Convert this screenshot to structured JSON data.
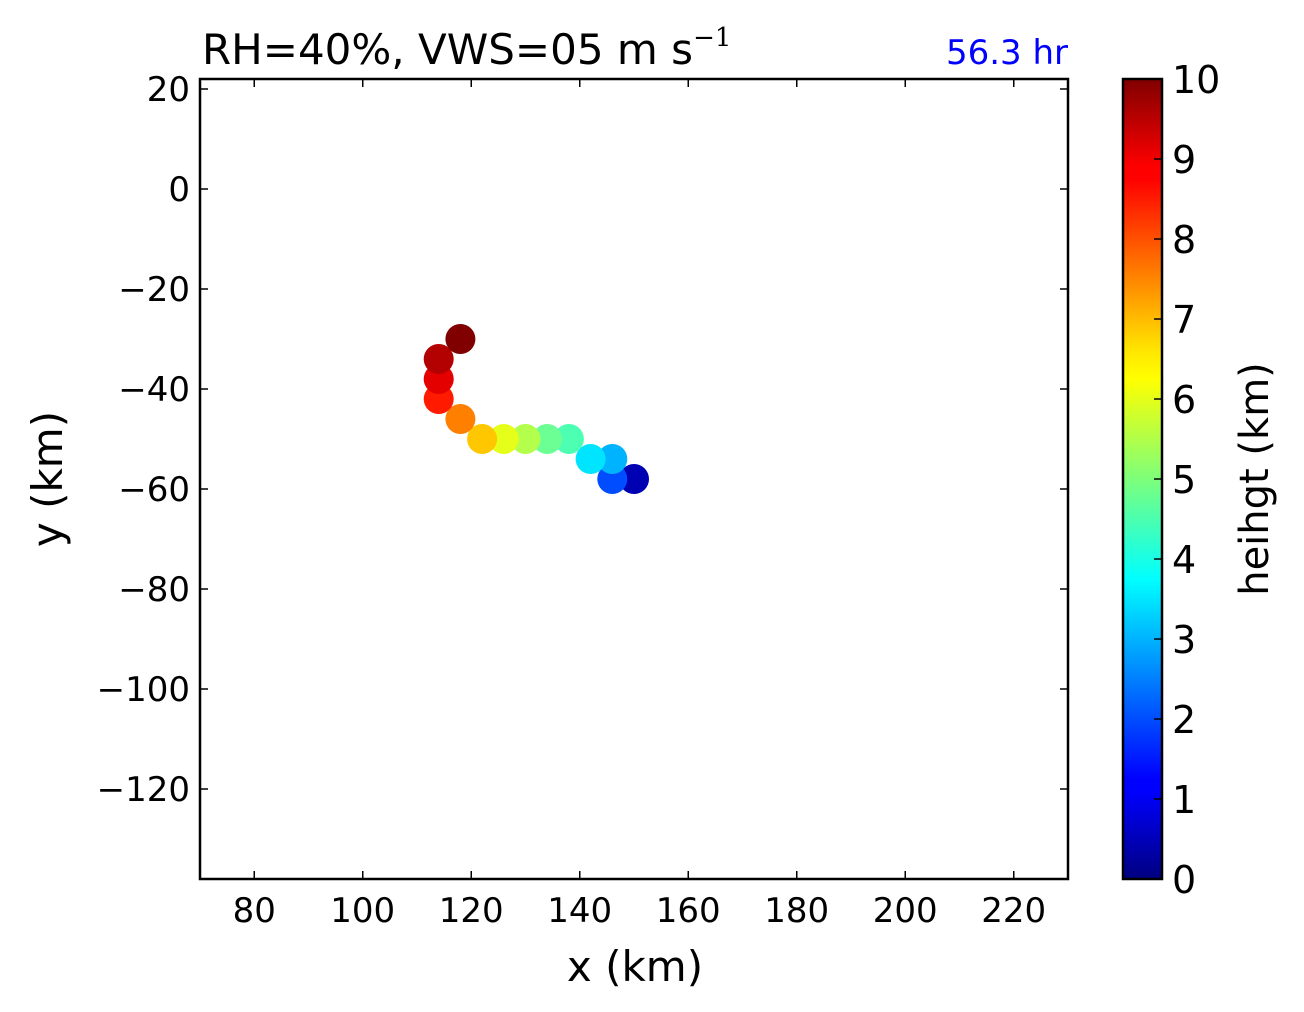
{
  "chart_data": {
    "type": "scatter",
    "title": "RH=40%, VWS=05 m s",
    "title_superscript": "−1",
    "time_label": "56.3 hr",
    "time_label_color": "#0000ff",
    "xlabel": "x (km)",
    "ylabel": "y (km)",
    "xlim": [
      70,
      230
    ],
    "ylim": [
      -138,
      22
    ],
    "xticks": [
      80,
      100,
      120,
      140,
      160,
      180,
      200,
      220
    ],
    "xtick_labels": [
      "80",
      "100",
      "120",
      "140",
      "160",
      "180",
      "200",
      "220"
    ],
    "yticks": [
      20,
      0,
      -20,
      -40,
      -60,
      -80,
      -100,
      -120
    ],
    "ytick_labels": [
      "20",
      "0",
      "−20",
      "−40",
      "−60",
      "−80",
      "−100",
      "−120"
    ],
    "grid": false,
    "colormap": "jet",
    "colorbar": {
      "label": "heihgt (km)",
      "range": [
        0,
        10
      ],
      "ticks": [
        0,
        1,
        2,
        3,
        4,
        5,
        6,
        7,
        8,
        9,
        10
      ],
      "tick_labels": [
        "0",
        "1",
        "2",
        "3",
        "4",
        "5",
        "6",
        "7",
        "8",
        "9",
        "10"
      ]
    },
    "points": [
      {
        "x": 150,
        "y": -58,
        "height": 0.5
      },
      {
        "x": 146,
        "y": -58,
        "height": 2.0
      },
      {
        "x": 146,
        "y": -54,
        "height": 3.0
      },
      {
        "x": 142,
        "y": -54,
        "height": 3.5
      },
      {
        "x": 138,
        "y": -50,
        "height": 4.5
      },
      {
        "x": 134,
        "y": -50,
        "height": 4.8
      },
      {
        "x": 130,
        "y": -50,
        "height": 5.5
      },
      {
        "x": 126,
        "y": -50,
        "height": 6.0
      },
      {
        "x": 122,
        "y": -50,
        "height": 6.8
      },
      {
        "x": 118,
        "y": -46,
        "height": 7.5
      },
      {
        "x": 114,
        "y": -42,
        "height": 8.5
      },
      {
        "x": 114,
        "y": -38,
        "height": 9.0
      },
      {
        "x": 114,
        "y": -34,
        "height": 9.5
      },
      {
        "x": 118,
        "y": -30,
        "height": 10.0
      }
    ]
  }
}
